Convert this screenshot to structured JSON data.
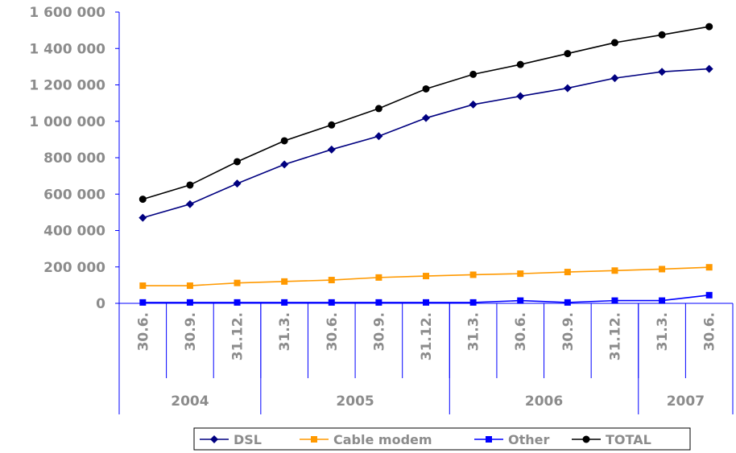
{
  "chart_data": {
    "type": "line",
    "categories": [
      "30.6.",
      "30.9.",
      "31.12.",
      "31.3.",
      "30.6.",
      "30.9.",
      "31.12.",
      "31.3.",
      "30.6.",
      "30.9.",
      "31.12.",
      "31.3.",
      "30.6."
    ],
    "year_groups": [
      {
        "label": "2004",
        "count": 3
      },
      {
        "label": "2005",
        "count": 4
      },
      {
        "label": "2006",
        "count": 4
      },
      {
        "label": "2007",
        "count": 2
      }
    ],
    "y_ticks": [
      "0",
      "200 000",
      "400 000",
      "600 000",
      "800 000",
      "1 000 000",
      "1 200 000",
      "1 400 000",
      "1 600 000"
    ],
    "ylim": [
      0,
      1600000
    ],
    "series": [
      {
        "name": "DSL",
        "color": "#000080",
        "marker": "diamond",
        "values": [
          470000,
          545000,
          658000,
          763000,
          845000,
          918000,
          1018000,
          1092000,
          1138000,
          1182000,
          1237000,
          1272000,
          1288000
        ]
      },
      {
        "name": "Cable modem",
        "color": "#ff9900",
        "marker": "square",
        "values": [
          97000,
          97000,
          112000,
          120000,
          128000,
          142000,
          150000,
          157000,
          163000,
          172000,
          180000,
          188000,
          198000
        ]
      },
      {
        "name": "Other",
        "color": "#0000ff",
        "marker": "square",
        "values": [
          5000,
          5000,
          5000,
          5000,
          5000,
          5000,
          5000,
          5000,
          15000,
          5000,
          15000,
          15000,
          45000
        ]
      },
      {
        "name": "TOTAL",
        "color": "#000000",
        "marker": "circle",
        "values": [
          572000,
          650000,
          778000,
          893000,
          980000,
          1070000,
          1178000,
          1258000,
          1312000,
          1372000,
          1432000,
          1475000,
          1520000
        ]
      }
    ],
    "grid": false,
    "legend_position": "bottom"
  }
}
